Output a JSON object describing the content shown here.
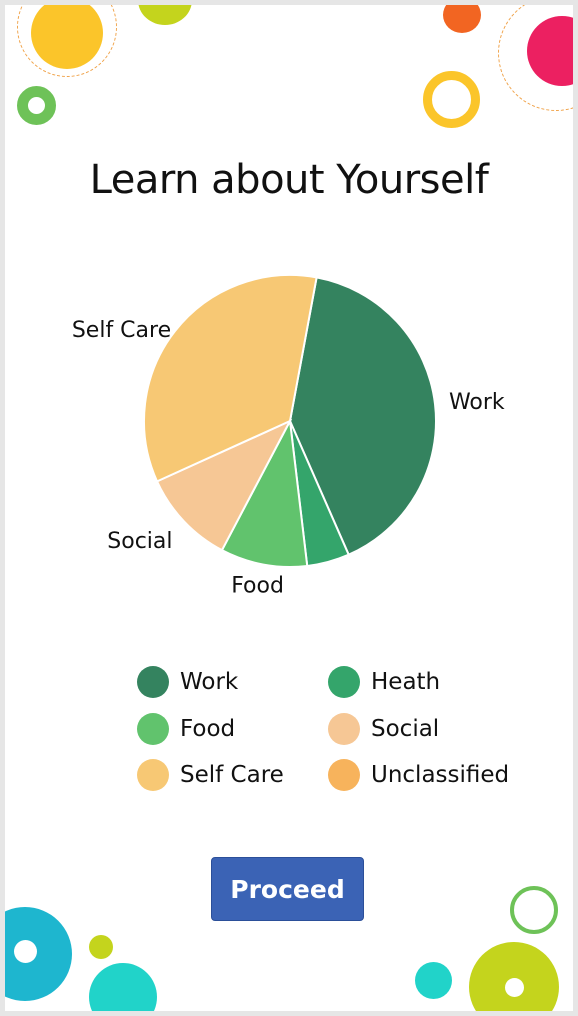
{
  "page": {
    "title": "Learn about Yourself",
    "proceed_label": "Proceed"
  },
  "colors": {
    "work": "#34835f",
    "health": "#34a56b",
    "food": "#61c36d",
    "social": "#f6c795",
    "self_care": "#f7c874",
    "unclassified": "#f7b35c",
    "button": "#3b63b5"
  },
  "legend": [
    {
      "label": "Work",
      "color": "#34835f"
    },
    {
      "label": "Heath",
      "color": "#34a56b"
    },
    {
      "label": "Food",
      "color": "#61c36d"
    },
    {
      "label": "Social",
      "color": "#f6c795"
    },
    {
      "label": "Self Care",
      "color": "#f7c874"
    },
    {
      "label": "Unclassified",
      "color": "#f7b35c"
    }
  ],
  "chart_data": {
    "type": "pie",
    "title": "",
    "slices": [
      {
        "label": "Work",
        "value": 40.5,
        "color": "#34835f",
        "show_label": true
      },
      {
        "label": "Heath",
        "value": 4.7,
        "color": "#34a56b",
        "show_label": false
      },
      {
        "label": "Food",
        "value": 9.6,
        "color": "#61c36d",
        "show_label": true
      },
      {
        "label": "Social",
        "value": 10.5,
        "color": "#f6c795",
        "show_label": true
      },
      {
        "label": "Self Care",
        "value": 34.7,
        "color": "#f7c874",
        "show_label": true
      },
      {
        "label": "Unclassified",
        "value": 0,
        "color": "#f7b35c",
        "show_label": false
      }
    ]
  }
}
